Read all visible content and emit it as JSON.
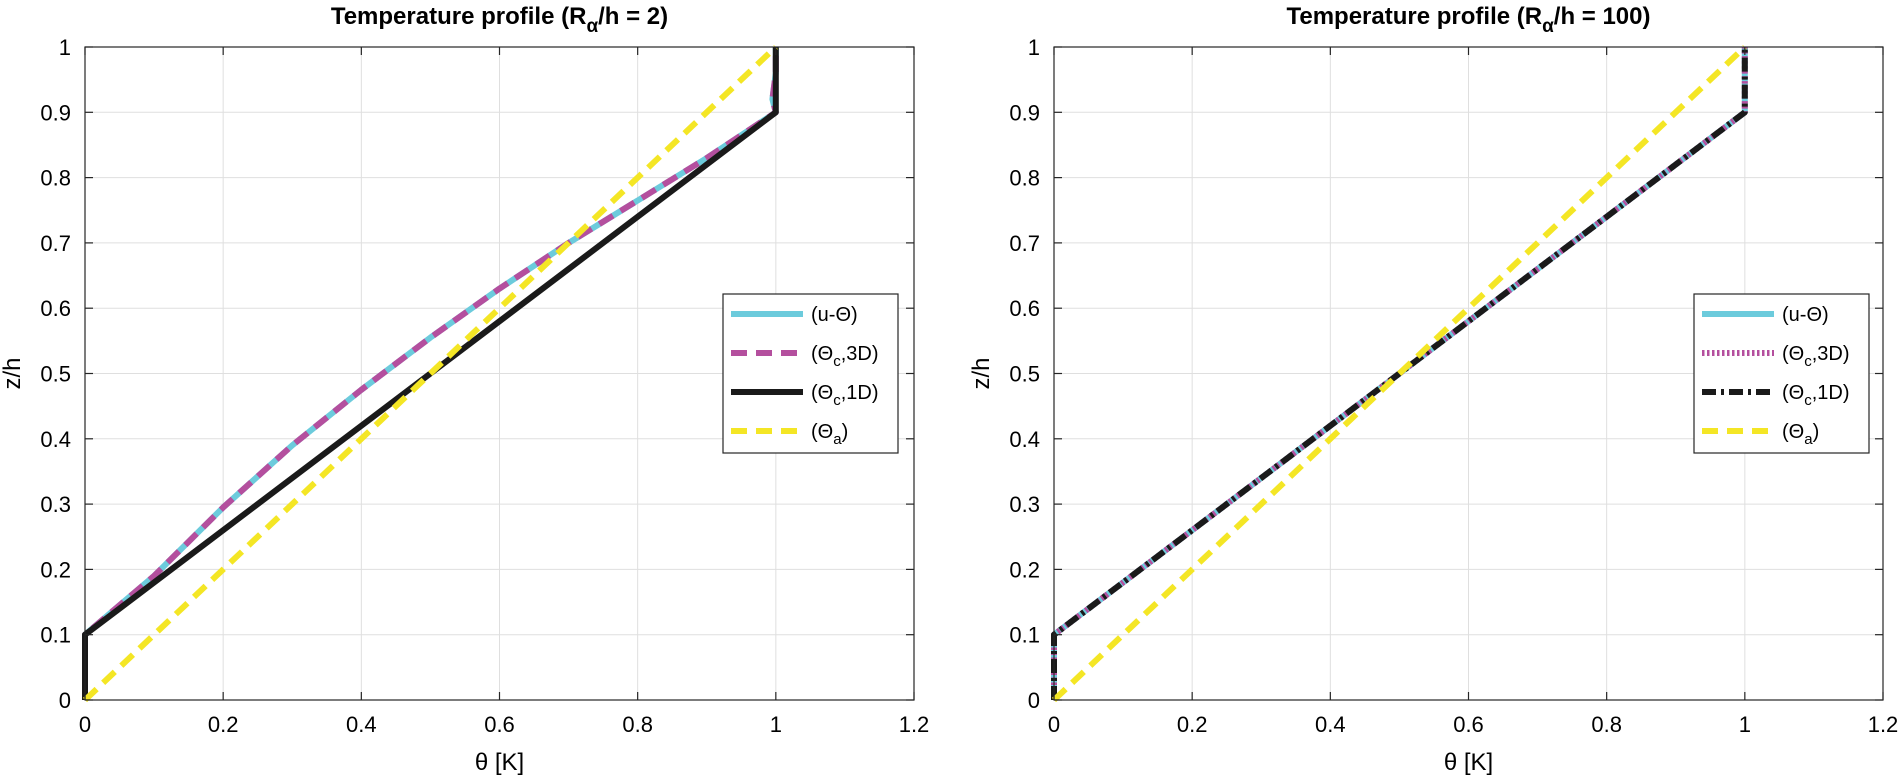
{
  "chart_data": [
    {
      "type": "line",
      "title": "Temperature profile (R",
      "title_sub": "α",
      "title_rest": "/h = 2)",
      "xlabel": "θ [K]",
      "ylabel": "z/h",
      "xlim": [
        0,
        1.2
      ],
      "ylim": [
        0,
        1
      ],
      "xticks": [
        0,
        0.2,
        0.4,
        0.6,
        0.8,
        1,
        1.2
      ],
      "yticks": [
        0,
        0.1,
        0.2,
        0.3,
        0.4,
        0.5,
        0.6,
        0.7,
        0.8,
        0.9,
        1
      ],
      "xtick_labels": [
        "0",
        "0.2",
        "0.4",
        "0.6",
        "0.8",
        "1",
        "1.2"
      ],
      "ytick_labels": [
        "0",
        "0.1",
        "0.2",
        "0.3",
        "0.4",
        "0.5",
        "0.6",
        "0.7",
        "0.8",
        "0.9",
        "1"
      ],
      "grid": true,
      "legend_position": "right",
      "series": [
        {
          "name": "(u-Θ)",
          "legend_main": "(u-Θ)",
          "legend_sub": "",
          "legend_rest": "",
          "color": "#6ccbdc",
          "style": "solid",
          "x": [
            0,
            0,
            0.05,
            0.1,
            0.2,
            0.3,
            0.4,
            0.5,
            0.6,
            0.7,
            0.8,
            0.9,
            1,
            0.995,
            1,
            1
          ],
          "y": [
            0,
            0.1,
            0.145,
            0.19,
            0.295,
            0.39,
            0.475,
            0.555,
            0.63,
            0.7,
            0.765,
            0.83,
            0.9,
            0.92,
            0.96,
            1
          ]
        },
        {
          "name": "(Θc,3D)",
          "legend_main": "(Θ",
          "legend_sub": "c",
          "legend_rest": ",3D)",
          "color": "#b44f9e",
          "style": "dashed",
          "x": [
            0,
            0,
            0.05,
            0.1,
            0.2,
            0.3,
            0.4,
            0.5,
            0.6,
            0.7,
            0.8,
            0.9,
            1,
            0.995,
            1,
            1
          ],
          "y": [
            0,
            0.1,
            0.145,
            0.19,
            0.295,
            0.39,
            0.475,
            0.555,
            0.63,
            0.7,
            0.765,
            0.83,
            0.9,
            0.92,
            0.96,
            1
          ]
        },
        {
          "name": "(Θc,1D)",
          "legend_main": "(Θ",
          "legend_sub": "c",
          "legend_rest": ",1D)",
          "color": "#1a1a1a",
          "style": "solid",
          "x": [
            0,
            0,
            1,
            1
          ],
          "y": [
            0,
            0.1,
            0.9,
            1
          ]
        },
        {
          "name": "(Θa)",
          "legend_main": "(Θ",
          "legend_sub": "a",
          "legend_rest": ")",
          "color": "#f4e625",
          "style": "dashed",
          "x": [
            0,
            1
          ],
          "y": [
            0,
            1
          ]
        }
      ]
    },
    {
      "type": "line",
      "title": "Temperature profile (R",
      "title_sub": "α",
      "title_rest": "/h = 100)",
      "xlabel": "θ [K]",
      "ylabel": "z/h",
      "xlim": [
        0,
        1.2
      ],
      "ylim": [
        0,
        1
      ],
      "xticks": [
        0,
        0.2,
        0.4,
        0.6,
        0.8,
        1,
        1.2
      ],
      "yticks": [
        0,
        0.1,
        0.2,
        0.3,
        0.4,
        0.5,
        0.6,
        0.7,
        0.8,
        0.9,
        1
      ],
      "xtick_labels": [
        "0",
        "0.2",
        "0.4",
        "0.6",
        "0.8",
        "1",
        "1.2"
      ],
      "ytick_labels": [
        "0",
        "0.1",
        "0.2",
        "0.3",
        "0.4",
        "0.5",
        "0.6",
        "0.7",
        "0.8",
        "0.9",
        "1"
      ],
      "grid": true,
      "legend_position": "right",
      "series": [
        {
          "name": "(u-Θ)",
          "legend_main": "(u-Θ)",
          "legend_sub": "",
          "legend_rest": "",
          "color": "#6ccbdc",
          "style": "solid",
          "x": [
            0,
            0,
            1,
            1
          ],
          "y": [
            0,
            0.1,
            0.9,
            1
          ]
        },
        {
          "name": "(Θc,3D)",
          "legend_main": "(Θ",
          "legend_sub": "c",
          "legend_rest": ",3D)",
          "color": "#b44f9e",
          "style": "dotted",
          "x": [
            0,
            0,
            1,
            1
          ],
          "y": [
            0,
            0.1,
            0.9,
            1
          ]
        },
        {
          "name": "(Θc,1D)",
          "legend_main": "(Θ",
          "legend_sub": "c",
          "legend_rest": ",1D)",
          "color": "#1a1a1a",
          "style": "dashdot",
          "x": [
            0,
            0,
            1,
            1
          ],
          "y": [
            0,
            0.1,
            0.9,
            1
          ]
        },
        {
          "name": "(Θa)",
          "legend_main": "(Θ",
          "legend_sub": "a",
          "legend_rest": ")",
          "color": "#f4e625",
          "style": "dashed",
          "x": [
            0,
            1
          ],
          "y": [
            0,
            1
          ]
        }
      ]
    }
  ]
}
